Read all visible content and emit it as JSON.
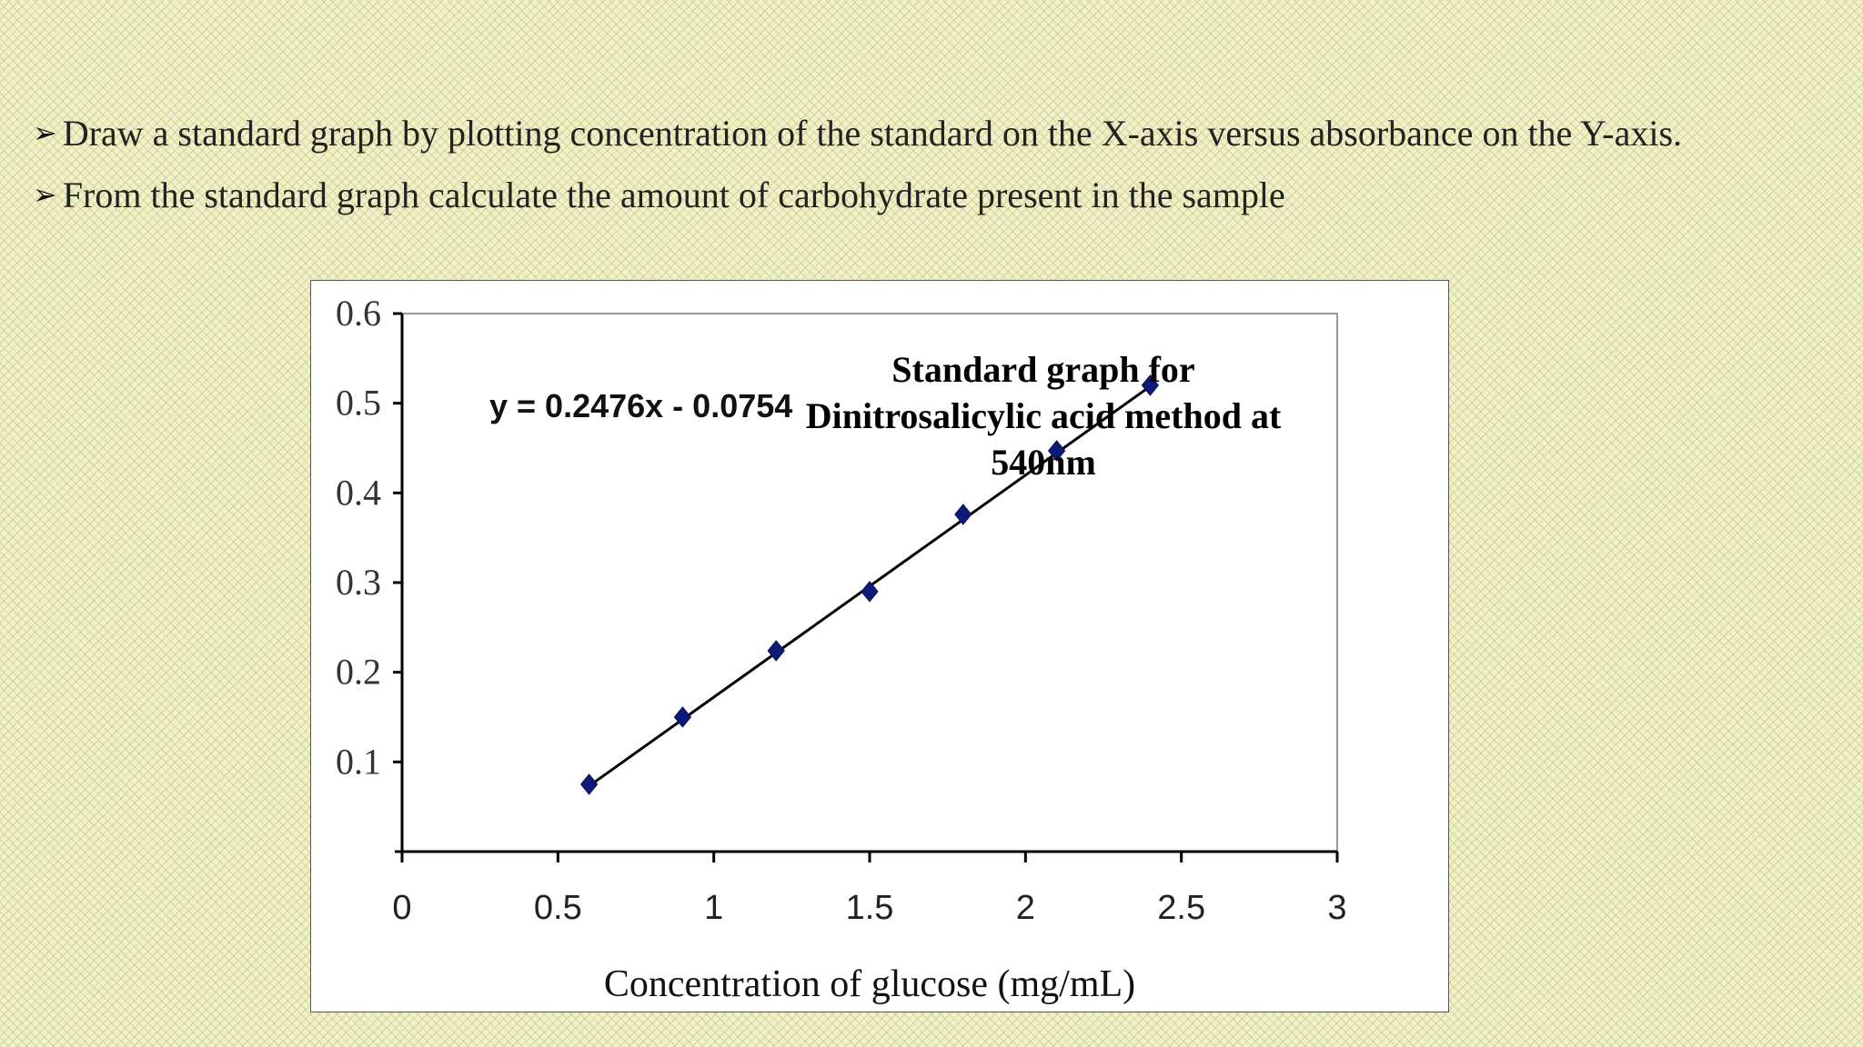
{
  "bullets": [
    {
      "symbol": "➢",
      "text": "Draw a standard graph by plotting concentration of the standard on the X-axis versus absorbance on the Y-axis."
    },
    {
      "symbol": "➢",
      "text": "From the standard graph calculate the amount of carbohydrate present in the sample"
    }
  ],
  "chart_data": {
    "type": "scatter",
    "title": "Standard graph for Dinitrosalicylic acid method  at 540nm",
    "xlabel": "Concentration of glucose (mg/mL)",
    "ylabel": "",
    "equation": "y = 0.2476x - 0.0754",
    "xlim": [
      0,
      3
    ],
    "ylim": [
      0,
      0.6
    ],
    "xticks": [
      "0",
      "0.5",
      "1",
      "1.5",
      "2",
      "2.5",
      "3"
    ],
    "yticks": [
      "0.1",
      "0.2",
      "0.3",
      "0.4",
      "0.5",
      "0.6"
    ],
    "points": [
      {
        "x": 0.6,
        "y": 0.075
      },
      {
        "x": 0.9,
        "y": 0.15
      },
      {
        "x": 1.2,
        "y": 0.224
      },
      {
        "x": 1.5,
        "y": 0.29
      },
      {
        "x": 1.8,
        "y": 0.376
      },
      {
        "x": 2.1,
        "y": 0.447
      },
      {
        "x": 2.4,
        "y": 0.52
      }
    ],
    "trendline": {
      "slope": 0.2476,
      "intercept": -0.0754,
      "x_from": 0.6,
      "x_to": 2.4
    },
    "marker": "diamond",
    "marker_color": "#0d1a7a",
    "line_color": "#000000",
    "grid": false
  }
}
